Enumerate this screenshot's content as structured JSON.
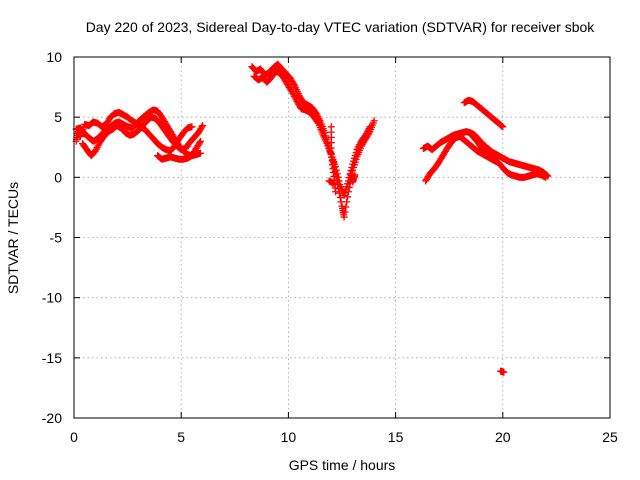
{
  "chart_data": {
    "type": "scatter",
    "title": "Day 220 of 2023, Sidereal Day-to-day VTEC variation (SDTVAR) for receiver sbok",
    "xlabel": "GPS time / hours",
    "ylabel": "SDTVAR / TECUs",
    "xlim": [
      0,
      25
    ],
    "ylim": [
      -20,
      10
    ],
    "xticks": [
      0,
      5,
      10,
      15,
      20,
      25
    ],
    "yticks": [
      -20,
      -15,
      -10,
      -5,
      0,
      5,
      10
    ],
    "xtick_labels": [
      "0",
      "5",
      "10",
      "15",
      "20",
      "25"
    ],
    "ytick_labels": [
      "-20",
      "-15",
      "-10",
      "-5",
      "0",
      "5",
      "10"
    ],
    "grid": true,
    "marker": "+",
    "series": [
      {
        "name": "sbok",
        "color": "#ff0000",
        "segments": [
          [
            [
              0.1,
              3.0
            ],
            [
              0.2,
              3.8
            ],
            [
              0.3,
              3.4
            ],
            [
              0.5,
              4.4
            ],
            [
              0.7,
              4.3
            ],
            [
              0.9,
              4.6
            ],
            [
              1.1,
              4.5
            ],
            [
              1.3,
              4.2
            ],
            [
              1.5,
              4.4
            ],
            [
              1.7,
              5.0
            ],
            [
              1.9,
              5.3
            ],
            [
              2.1,
              5.4
            ],
            [
              2.3,
              5.2
            ],
            [
              2.5,
              5.0
            ],
            [
              2.7,
              4.7
            ],
            [
              2.9,
              4.5
            ],
            [
              3.1,
              4.2
            ],
            [
              3.3,
              4.0
            ],
            [
              3.5,
              3.6
            ],
            [
              3.7,
              3.2
            ],
            [
              3.9,
              2.8
            ],
            [
              4.1,
              2.5
            ],
            [
              4.3,
              2.3
            ],
            [
              4.5,
              2.2
            ],
            [
              4.7,
              2.6
            ],
            [
              4.9,
              3.2
            ],
            [
              5.1,
              3.7
            ],
            [
              5.3,
              4.1
            ],
            [
              5.5,
              4.2
            ]
          ],
          [
            [
              0.1,
              4.0
            ],
            [
              0.3,
              4.1
            ],
            [
              0.5,
              3.6
            ],
            [
              0.7,
              3.3
            ],
            [
              0.9,
              3.0
            ],
            [
              1.1,
              3.2
            ],
            [
              1.3,
              3.6
            ],
            [
              1.5,
              3.9
            ],
            [
              1.7,
              4.2
            ],
            [
              1.9,
              4.5
            ],
            [
              2.1,
              4.6
            ],
            [
              2.3,
              4.4
            ],
            [
              2.5,
              4.2
            ],
            [
              2.7,
              4.1
            ],
            [
              2.9,
              4.4
            ],
            [
              3.1,
              4.8
            ],
            [
              3.3,
              5.1
            ],
            [
              3.5,
              5.4
            ],
            [
              3.7,
              5.6
            ],
            [
              3.9,
              5.5
            ],
            [
              4.1,
              5.0
            ],
            [
              4.3,
              4.4
            ],
            [
              4.5,
              3.8
            ],
            [
              4.7,
              3.2
            ],
            [
              4.9,
              2.6
            ],
            [
              5.1,
              2.2
            ],
            [
              5.3,
              1.9
            ],
            [
              5.5,
              1.8
            ],
            [
              5.7,
              2.4
            ],
            [
              5.9,
              3.0
            ]
          ],
          [
            [
              0.4,
              2.8
            ],
            [
              0.6,
              2.3
            ],
            [
              0.8,
              1.8
            ],
            [
              1.0,
              2.2
            ],
            [
              1.2,
              2.9
            ],
            [
              1.4,
              3.4
            ],
            [
              1.6,
              3.8
            ],
            [
              1.8,
              4.0
            ],
            [
              2.0,
              4.3
            ],
            [
              2.2,
              4.1
            ],
            [
              2.4,
              3.7
            ],
            [
              2.6,
              3.5
            ],
            [
              2.8,
              3.6
            ],
            [
              3.0,
              3.9
            ],
            [
              3.2,
              4.3
            ],
            [
              3.4,
              4.7
            ],
            [
              3.6,
              5.0
            ],
            [
              3.8,
              4.9
            ],
            [
              4.0,
              4.5
            ],
            [
              4.2,
              4.0
            ],
            [
              4.4,
              3.5
            ],
            [
              4.6,
              3.0
            ],
            [
              4.8,
              2.6
            ],
            [
              5.0,
              2.3
            ],
            [
              5.2,
              2.4
            ],
            [
              5.4,
              2.9
            ],
            [
              5.6,
              3.3
            ],
            [
              5.8,
              3.7
            ],
            [
              6.0,
              4.3
            ]
          ],
          [
            [
              3.9,
              1.8
            ],
            [
              4.1,
              1.5
            ],
            [
              4.3,
              1.6
            ],
            [
              4.5,
              1.7
            ],
            [
              4.7,
              1.6
            ],
            [
              4.9,
              1.5
            ],
            [
              5.1,
              1.5
            ],
            [
              5.3,
              1.6
            ],
            [
              5.5,
              1.8
            ],
            [
              5.7,
              1.9
            ],
            [
              5.9,
              2.0
            ]
          ],
          [
            [
              8.3,
              9.2
            ],
            [
              8.5,
              8.8
            ],
            [
              8.7,
              9.0
            ],
            [
              8.9,
              8.5
            ],
            [
              9.1,
              8.7
            ],
            [
              9.3,
              9.1
            ],
            [
              9.5,
              9.4
            ],
            [
              9.7,
              9.0
            ],
            [
              9.9,
              8.6
            ],
            [
              10.1,
              8.2
            ],
            [
              10.3,
              7.6
            ],
            [
              10.5,
              6.8
            ],
            [
              10.7,
              6.2
            ],
            [
              10.9,
              6.0
            ],
            [
              11.1,
              5.8
            ],
            [
              11.3,
              5.3
            ],
            [
              11.5,
              4.6
            ],
            [
              11.7,
              3.7
            ],
            [
              11.9,
              2.4
            ],
            [
              12.1,
              1.2
            ],
            [
              12.3,
              -0.6
            ],
            [
              12.5,
              -2.4
            ],
            [
              12.6,
              -3.3
            ],
            [
              12.8,
              -1.2
            ],
            [
              13.0,
              0.6
            ],
            [
              13.2,
              1.7
            ],
            [
              13.4,
              2.6
            ],
            [
              13.6,
              3.2
            ],
            [
              13.8,
              3.8
            ],
            [
              14.0,
              4.7
            ]
          ],
          [
            [
              8.4,
              8.4
            ],
            [
              8.6,
              8.1
            ],
            [
              8.8,
              8.3
            ],
            [
              9.0,
              7.9
            ],
            [
              9.2,
              8.3
            ],
            [
              9.4,
              8.8
            ],
            [
              9.6,
              8.7
            ],
            [
              9.8,
              8.2
            ],
            [
              10.0,
              7.6
            ],
            [
              10.2,
              7.0
            ],
            [
              10.4,
              6.3
            ],
            [
              10.6,
              5.7
            ],
            [
              10.8,
              5.6
            ],
            [
              11.0,
              5.4
            ],
            [
              11.2,
              5.0
            ],
            [
              11.4,
              4.5
            ],
            [
              11.6,
              3.6
            ],
            [
              11.8,
              2.8
            ],
            [
              12.0,
              1.9
            ],
            [
              12.2,
              0.9
            ],
            [
              12.4,
              -0.6
            ],
            [
              12.6,
              -1.5
            ],
            [
              12.8,
              -0.3
            ],
            [
              13.0,
              1.1
            ],
            [
              13.2,
              2.3
            ],
            [
              13.4,
              3.0
            ],
            [
              13.6,
              3.5
            ],
            [
              13.8,
              4.2
            ]
          ],
          [
            [
              12.0,
              4.2
            ],
            [
              12.0,
              2.0
            ],
            [
              12.1,
              0.4
            ],
            [
              12.2,
              -1.2
            ]
          ],
          [
            [
              11.9,
              -0.3
            ],
            [
              12.1,
              -0.5
            ]
          ],
          [
            [
              12.9,
              0.3
            ],
            [
              13.0,
              -0.4
            ],
            [
              13.1,
              0.2
            ]
          ],
          [
            [
              16.3,
              2.4
            ],
            [
              16.5,
              2.6
            ],
            [
              16.7,
              2.3
            ],
            [
              16.9,
              2.6
            ],
            [
              17.1,
              2.9
            ],
            [
              17.3,
              3.1
            ],
            [
              17.5,
              3.3
            ],
            [
              17.7,
              3.5
            ],
            [
              17.9,
              3.6
            ],
            [
              18.1,
              3.7
            ],
            [
              18.3,
              3.8
            ],
            [
              18.5,
              3.7
            ],
            [
              18.7,
              3.5
            ],
            [
              18.9,
              3.1
            ],
            [
              19.1,
              2.7
            ],
            [
              19.3,
              2.4
            ],
            [
              19.5,
              2.1
            ],
            [
              19.7,
              1.9
            ],
            [
              19.9,
              1.7
            ],
            [
              20.1,
              1.5
            ],
            [
              20.3,
              1.3
            ],
            [
              20.5,
              1.2
            ],
            [
              20.7,
              1.1
            ],
            [
              20.9,
              1.0
            ],
            [
              21.1,
              0.9
            ],
            [
              21.3,
              0.8
            ],
            [
              21.5,
              0.7
            ],
            [
              21.7,
              0.6
            ],
            [
              21.9,
              0.4
            ],
            [
              22.1,
              0.1
            ]
          ],
          [
            [
              16.4,
              -0.3
            ],
            [
              16.6,
              0.3
            ],
            [
              16.8,
              0.7
            ],
            [
              17.0,
              1.2
            ],
            [
              17.2,
              1.8
            ],
            [
              17.4,
              2.4
            ],
            [
              17.6,
              2.9
            ],
            [
              17.8,
              3.3
            ],
            [
              18.0,
              3.4
            ],
            [
              18.2,
              3.1
            ],
            [
              18.4,
              2.8
            ],
            [
              18.6,
              2.5
            ],
            [
              18.8,
              2.2
            ],
            [
              19.0,
              2.0
            ],
            [
              19.2,
              1.8
            ],
            [
              19.4,
              1.6
            ],
            [
              19.6,
              1.4
            ],
            [
              19.8,
              1.2
            ],
            [
              20.0,
              0.8
            ],
            [
              20.2,
              0.4
            ],
            [
              20.4,
              0.2
            ],
            [
              20.6,
              0.1
            ],
            [
              20.8,
              0.0
            ],
            [
              21.0,
              0.0
            ],
            [
              21.2,
              0.1
            ],
            [
              21.4,
              0.2
            ],
            [
              21.6,
              0.3
            ],
            [
              21.8,
              0.2
            ],
            [
              22.0,
              0.0
            ]
          ],
          [
            [
              18.6,
              3.4
            ],
            [
              18.8,
              3.0
            ],
            [
              19.0,
              2.5
            ],
            [
              19.2,
              2.2
            ],
            [
              19.4,
              1.9
            ],
            [
              19.6,
              1.5
            ]
          ],
          [
            [
              18.2,
              6.2
            ],
            [
              18.4,
              6.4
            ],
            [
              18.6,
              6.3
            ],
            [
              18.8,
              6.0
            ],
            [
              19.0,
              5.7
            ],
            [
              19.2,
              5.4
            ],
            [
              19.4,
              5.1
            ],
            [
              19.6,
              4.8
            ],
            [
              19.8,
              4.5
            ],
            [
              20.0,
              4.2
            ]
          ],
          [
            [
              19.9,
              -16.1
            ],
            [
              20.05,
              -16.2
            ]
          ]
        ]
      }
    ]
  }
}
